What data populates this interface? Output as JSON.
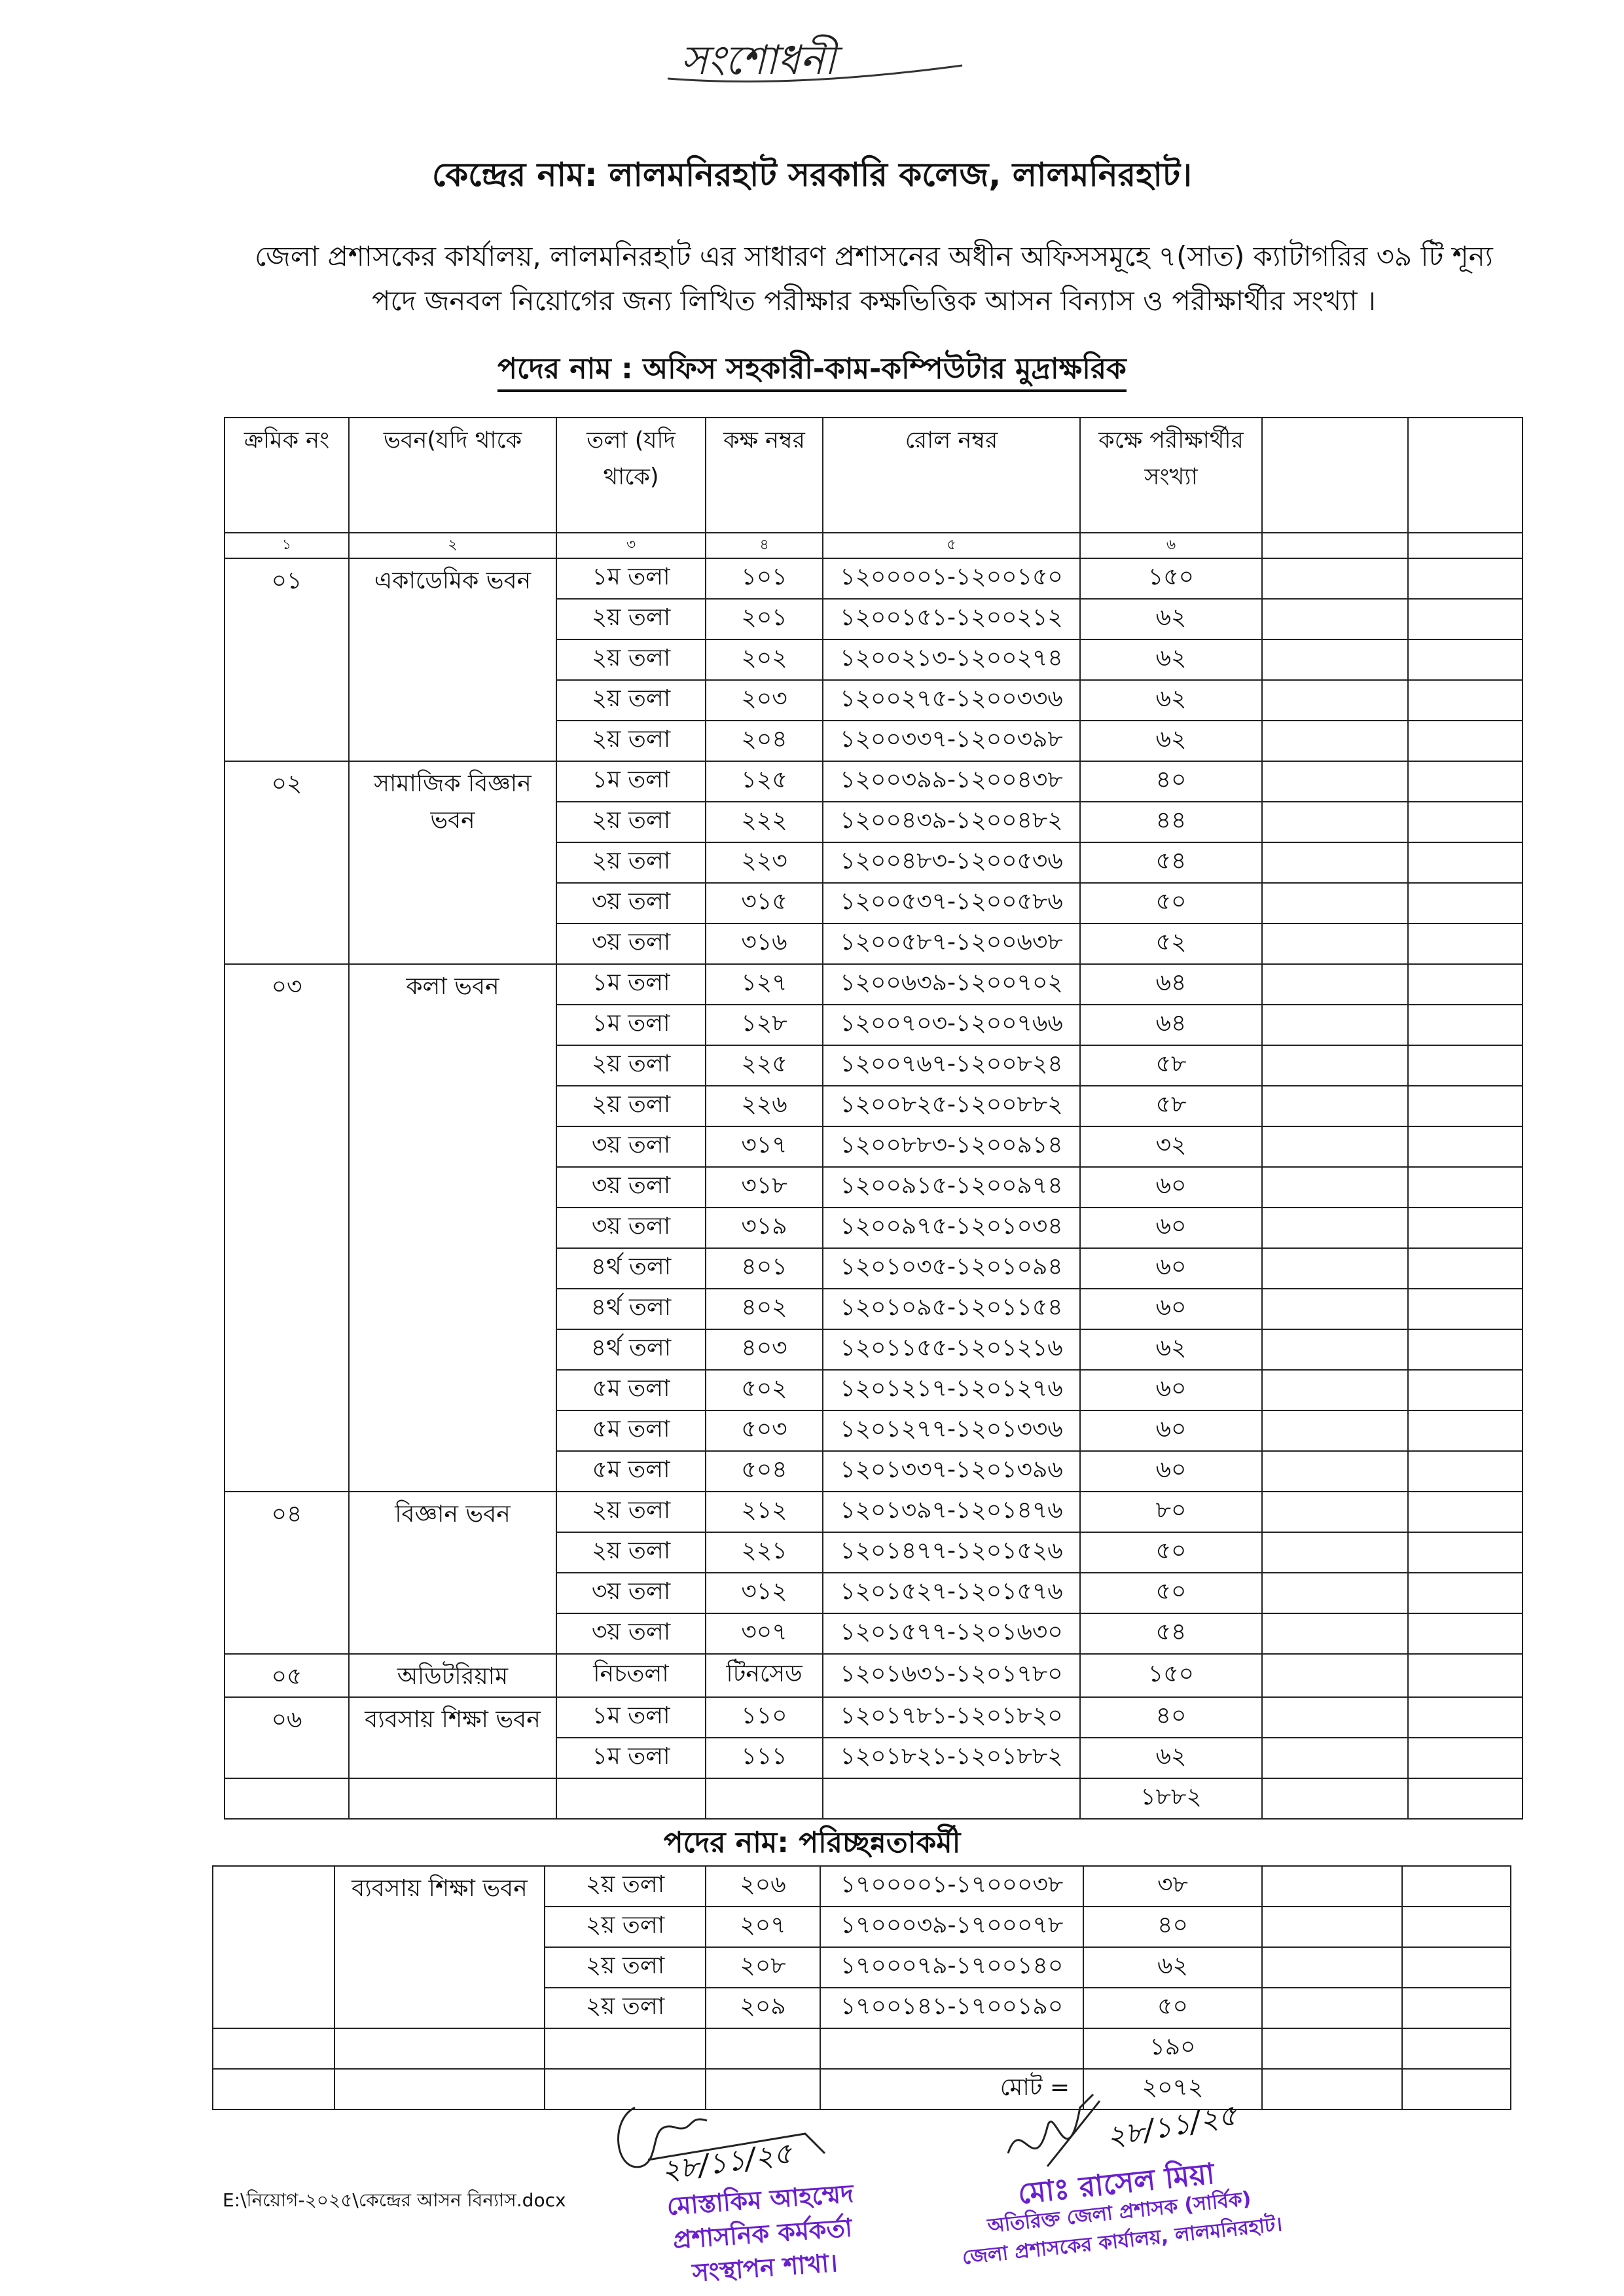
{
  "correction_note": "সংশোধনী",
  "title": "কেন্দ্রের নাম: লালমনিরহাট সরকারি কলেজ, লালমনিরহাট।",
  "paragraph": "জেলা প্রশাসকের কার্যালয়, লালমনিরহাট এর সাধারণ প্রশাসনের অধীন অফিসসমূহে ৭(সাত) ক্যাটাগরির ৩৯ টি শূন্য পদে জনবল নিয়োগের জন্য লিখিত পরীক্ষার কক্ষভিত্তিক আসন বিন্যাস ও পরীক্ষার্থীর সংখ্যা ।",
  "section1": {
    "post_title": "পদের নাম : অফিস সহকারী-কাম-কম্পিউটার মুদ্রাক্ষরিক",
    "headers": [
      "ক্রমিক নং",
      "ভবন(যদি থাকে",
      "তলা (যদি থাকে)",
      "কক্ষ নম্বর",
      "রোল নম্বর",
      "কক্ষে পরীক্ষার্থীর সংখ্যা",
      "",
      ""
    ],
    "column_numbers": [
      "১",
      "২",
      "৩",
      "৪",
      "৫",
      "৬",
      "",
      ""
    ],
    "groups": [
      {
        "serial": "০১",
        "building": "একাডেমিক ভবন",
        "rows": [
          {
            "floor": "১ম তলা",
            "room": "১০১",
            "roll": "১২০০০০১-১২০০১৫০",
            "count": "১৫০"
          },
          {
            "floor": "২য় তলা",
            "room": "২০১",
            "roll": "১২০০১৫১-১২০০২১২",
            "count": "৬২"
          },
          {
            "floor": "২য় তলা",
            "room": "২০২",
            "roll": "১২০০২১৩-১২০০২৭৪",
            "count": "৬২"
          },
          {
            "floor": "২য় তলা",
            "room": "২০৩",
            "roll": "১২০০২৭৫-১২০০৩৩৬",
            "count": "৬২"
          },
          {
            "floor": "২য় তলা",
            "room": "২০৪",
            "roll": "১২০০৩৩৭-১২০০৩৯৮",
            "count": "৬২"
          }
        ]
      },
      {
        "serial": "০২",
        "building": "সামাজিক বিজ্ঞান ভবন",
        "rows": [
          {
            "floor": "১ম তলা",
            "room": "১২৫",
            "roll": "১২০০৩৯৯-১২০০৪৩৮",
            "count": "৪০"
          },
          {
            "floor": "২য় তলা",
            "room": "২২২",
            "roll": "১২০০৪৩৯-১২০০৪৮২",
            "count": "৪৪"
          },
          {
            "floor": "২য় তলা",
            "room": "২২৩",
            "roll": "১২০০৪৮৩-১২০০৫৩৬",
            "count": "৫৪"
          },
          {
            "floor": "৩য় তলা",
            "room": "৩১৫",
            "roll": "১২০০৫৩৭-১২০০৫৮৬",
            "count": "৫০"
          },
          {
            "floor": "৩য় তলা",
            "room": "৩১৬",
            "roll": "১২০০৫৮৭-১২০০৬৩৮",
            "count": "৫২"
          }
        ]
      },
      {
        "serial": "০৩",
        "building": "কলা ভবন",
        "rows": [
          {
            "floor": "১ম তলা",
            "room": "১২৭",
            "roll": "১২০০৬৩৯-১২০০৭০২",
            "count": "৬৪"
          },
          {
            "floor": "১ম তলা",
            "room": "১২৮",
            "roll": "১২০০৭০৩-১২০০৭৬৬",
            "count": "৬৪"
          },
          {
            "floor": "২য় তলা",
            "room": "২২৫",
            "roll": "১২০০৭৬৭-১২০০৮২৪",
            "count": "৫৮"
          },
          {
            "floor": "২য় তলা",
            "room": "২২৬",
            "roll": "১২০০৮২৫-১২০০৮৮২",
            "count": "৫৮"
          },
          {
            "floor": "৩য় তলা",
            "room": "৩১৭",
            "roll": "১২০০৮৮৩-১২০০৯১৪",
            "count": "৩২"
          },
          {
            "floor": "৩য় তলা",
            "room": "৩১৮",
            "roll": "১২০০৯১৫-১২০০৯৭৪",
            "count": "৬০"
          },
          {
            "floor": "৩য় তলা",
            "room": "৩১৯",
            "roll": "১২০০৯৭৫-১২০১০৩৪",
            "count": "৬০"
          },
          {
            "floor": "৪র্থ তলা",
            "room": "৪০১",
            "roll": "১২০১০৩৫-১২০১০৯৪",
            "count": "৬০"
          },
          {
            "floor": "৪র্থ তলা",
            "room": "৪০২",
            "roll": "১২০১০৯৫-১২০১১৫৪",
            "count": "৬০"
          },
          {
            "floor": "৪র্থ তলা",
            "room": "৪০৩",
            "roll": "১২০১১৫৫-১২০১২১৬",
            "count": "৬২"
          },
          {
            "floor": "৫ম তলা",
            "room": "৫০২",
            "roll": "১২০১২১৭-১২০১২৭৬",
            "count": "৬০"
          },
          {
            "floor": "৫ম তলা",
            "room": "৫০৩",
            "roll": "১২০১২৭৭-১২০১৩৩৬",
            "count": "৬০"
          },
          {
            "floor": "৫ম তলা",
            "room": "৫০৪",
            "roll": "১২০১৩৩৭-১২০১৩৯৬",
            "count": "৬০"
          }
        ]
      },
      {
        "serial": "০৪",
        "building": "বিজ্ঞান ভবন",
        "rows": [
          {
            "floor": "২য় তলা",
            "room": "২১২",
            "roll": "১২০১৩৯৭-১২০১৪৭৬",
            "count": "৮০"
          },
          {
            "floor": "২য় তলা",
            "room": "২২১",
            "roll": "১২০১৪৭৭-১২০১৫২৬",
            "count": "৫০"
          },
          {
            "floor": "৩য় তলা",
            "room": "৩১২",
            "roll": "১২০১৫২৭-১২০১৫৭৬",
            "count": "৫০"
          },
          {
            "floor": "৩য় তলা",
            "room": "৩০৭",
            "roll": "১২০১৫৭৭-১২০১৬৩০",
            "count": "৫৪"
          }
        ]
      },
      {
        "serial": "০৫",
        "building": "অডিটরিয়াম",
        "rows": [
          {
            "floor": "নিচতলা",
            "room": "টিনসেড",
            "roll": "১২০১৬৩১-১২০১৭৮০",
            "count": "১৫০"
          }
        ]
      },
      {
        "serial": "০৬",
        "building": "ব্যবসায় শিক্ষা ভবন",
        "rows": [
          {
            "floor": "১ম তলা",
            "room": "১১০",
            "roll": "১২০১৭৮১-১২০১৮২০",
            "count": "৪০"
          },
          {
            "floor": "১ম তলা",
            "room": "১১১",
            "roll": "১২০১৮২১-১২০১৮৮২",
            "count": "৬২"
          }
        ]
      }
    ],
    "subtotal": "১৮৮২"
  },
  "section2": {
    "post_title": "পদের নাম: পরিচ্ছন্নতাকর্মী",
    "groups": [
      {
        "serial": "",
        "building": "ব্যবসায় শিক্ষা ভবন",
        "rows": [
          {
            "floor": "২য় তলা",
            "room": "২০৬",
            "roll": "১৭০০০০১-১৭০০০৩৮",
            "count": "৩৮"
          },
          {
            "floor": "২য় তলা",
            "room": "২০৭",
            "roll": "১৭০০০৩৯-১৭০০০৭৮",
            "count": "৪০"
          },
          {
            "floor": "২য় তলা",
            "room": "২০৮",
            "roll": "১৭০০০৭৯-১৭০০১৪০",
            "count": "৬২"
          },
          {
            "floor": "২য় তলা",
            "room": "২০৯",
            "roll": "১৭০০১৪১-১৭০০১৯০",
            "count": "৫০"
          }
        ]
      }
    ],
    "subtotal": "১৯০",
    "grand_total_label": "মোট =",
    "grand_total": "২০৭২"
  },
  "footer": {
    "file_path": "E:\\নিয়োগ-২০২৫\\কেন্দ্রের আসন বিন্যাস.docx"
  },
  "signatures": [
    {
      "date": "২৮/১১/২৫",
      "stamp_lines": [
        "মোস্তাকিম আহম্মেদ",
        "প্রশাসনিক কর্মকর্তা",
        "সংস্থাপন শাখা।"
      ]
    },
    {
      "date": "২৮/১১/২৫",
      "stamp_lines": [
        "মোঃ রাসেল মিয়া",
        "অতিরিক্ত জেলা প্রশাসক (সার্বিক)",
        "জেলা প্রশাসকের কার্যালয়, লালমনিরহাট।"
      ]
    }
  ],
  "colors": {
    "stamp": "#6a1fd0",
    "text": "#111111",
    "border": "#222222"
  }
}
